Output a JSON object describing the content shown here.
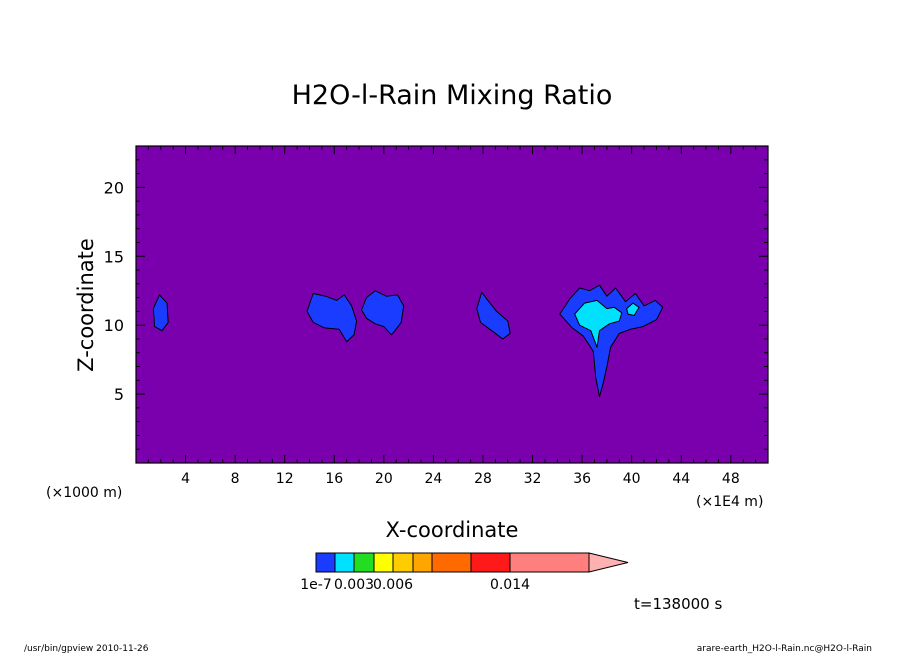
{
  "chart_data": {
    "type": "contour",
    "title": "H2O-l-Rain Mixing Ratio",
    "xlabel": "X-coordinate",
    "ylabel": "Z-coordinate",
    "x_unit_left": "(×1000 m)",
    "x_unit_right": "(×1E4 m)",
    "xlim": [
      0,
      51
    ],
    "ylim": [
      0,
      23
    ],
    "x_ticks": [
      "4",
      "8",
      "12",
      "16",
      "20",
      "24",
      "28",
      "32",
      "36",
      "40",
      "44",
      "48"
    ],
    "x_tick_values": [
      4,
      8,
      12,
      16,
      20,
      24,
      28,
      32,
      36,
      40,
      44,
      48
    ],
    "y_ticks": [
      "5",
      "10",
      "15",
      "20"
    ],
    "y_tick_values": [
      5,
      10,
      15,
      20
    ],
    "grid": false,
    "background_color": "#7b00ad",
    "contour_colors": [
      "#1a3cff",
      "#00e0ff",
      "#22dd22",
      "#ffff00",
      "#ffcc00",
      "#ffa500",
      "#ff6a00",
      "#ff1a1a",
      "#ff7f7f",
      "#ffb0b0"
    ],
    "colorbar_labels": [
      "1e-7",
      "0.003",
      "0.006",
      "0.014"
    ],
    "colorbar_label_index": [
      0,
      2,
      4,
      8
    ],
    "time_label": "t=138000 s",
    "regions": [
      {
        "name": "cell-1",
        "level": 0,
        "points": [
          [
            1.4,
            11.2
          ],
          [
            1.9,
            12.2
          ],
          [
            2.5,
            11.6
          ],
          [
            2.6,
            10.2
          ],
          [
            2.1,
            9.6
          ],
          [
            1.5,
            9.9
          ]
        ]
      },
      {
        "name": "cell-2",
        "level": 0,
        "points": [
          [
            13.8,
            11
          ],
          [
            14.3,
            12.3
          ],
          [
            15.3,
            12.1
          ],
          [
            16.2,
            11.8
          ],
          [
            16.8,
            12.2
          ],
          [
            17.4,
            11.4
          ],
          [
            17.8,
            10.3
          ],
          [
            17.6,
            9.3
          ],
          [
            17,
            8.8
          ],
          [
            16.4,
            9.7
          ],
          [
            15.2,
            9.8
          ],
          [
            14.3,
            10.2
          ]
        ]
      },
      {
        "name": "cell-3",
        "level": 0,
        "points": [
          [
            18.2,
            11.1
          ],
          [
            18.6,
            12
          ],
          [
            19.3,
            12.5
          ],
          [
            20.2,
            12.1
          ],
          [
            21.1,
            12.2
          ],
          [
            21.6,
            11.4
          ],
          [
            21.4,
            10.2
          ],
          [
            20.9,
            9.6
          ],
          [
            20.6,
            9.3
          ],
          [
            20,
            9.9
          ],
          [
            19.3,
            10.1
          ],
          [
            18.6,
            10.5
          ]
        ]
      },
      {
        "name": "cell-4",
        "level": 0,
        "points": [
          [
            27.5,
            11.2
          ],
          [
            27.9,
            12.4
          ],
          [
            28.4,
            11.8
          ],
          [
            29.1,
            11
          ],
          [
            30,
            10.3
          ],
          [
            30.2,
            9.4
          ],
          [
            29.6,
            9
          ],
          [
            28.7,
            9.6
          ],
          [
            27.8,
            10.2
          ]
        ]
      },
      {
        "name": "cell-5",
        "level": 0,
        "points": [
          [
            34.2,
            10.8
          ],
          [
            35,
            11.9
          ],
          [
            35.8,
            12.7
          ],
          [
            36.6,
            12.5
          ],
          [
            37.4,
            12.9
          ],
          [
            38,
            12.1
          ],
          [
            38.7,
            12.7
          ],
          [
            39.5,
            11.7
          ],
          [
            40.3,
            12.3
          ],
          [
            41,
            11.4
          ],
          [
            41.9,
            11.8
          ],
          [
            42.5,
            11.3
          ],
          [
            42,
            10.4
          ],
          [
            40.9,
            9.9
          ],
          [
            39.9,
            9.7
          ],
          [
            39,
            9.4
          ],
          [
            38.3,
            8.4
          ],
          [
            38,
            7
          ],
          [
            37.7,
            5.8
          ],
          [
            37.4,
            4.8
          ],
          [
            37.1,
            6.2
          ],
          [
            36.9,
            8.1
          ],
          [
            36.1,
            9.2
          ],
          [
            35.2,
            9.8
          ]
        ]
      },
      {
        "name": "cell-5-core",
        "level": 1,
        "points": [
          [
            35.4,
            10.8
          ],
          [
            36.2,
            11.6
          ],
          [
            37.2,
            11.8
          ],
          [
            38,
            11.2
          ],
          [
            38.6,
            11.3
          ],
          [
            39.2,
            10.9
          ],
          [
            39,
            10.3
          ],
          [
            38.2,
            10.1
          ],
          [
            37.4,
            9.6
          ],
          [
            37.2,
            8.4
          ],
          [
            36.7,
            9.6
          ],
          [
            35.8,
            10
          ]
        ]
      },
      {
        "name": "cell-5-core-2",
        "level": 1,
        "points": [
          [
            39.6,
            11.2
          ],
          [
            40.1,
            11.6
          ],
          [
            40.6,
            11.3
          ],
          [
            40.2,
            10.7
          ],
          [
            39.7,
            10.8
          ]
        ]
      }
    ]
  },
  "footer": {
    "left": "/usr/bin/gpview  2010-11-26",
    "right": "arare-earth_H2O-l-Rain.nc@H2O-l-Rain"
  }
}
